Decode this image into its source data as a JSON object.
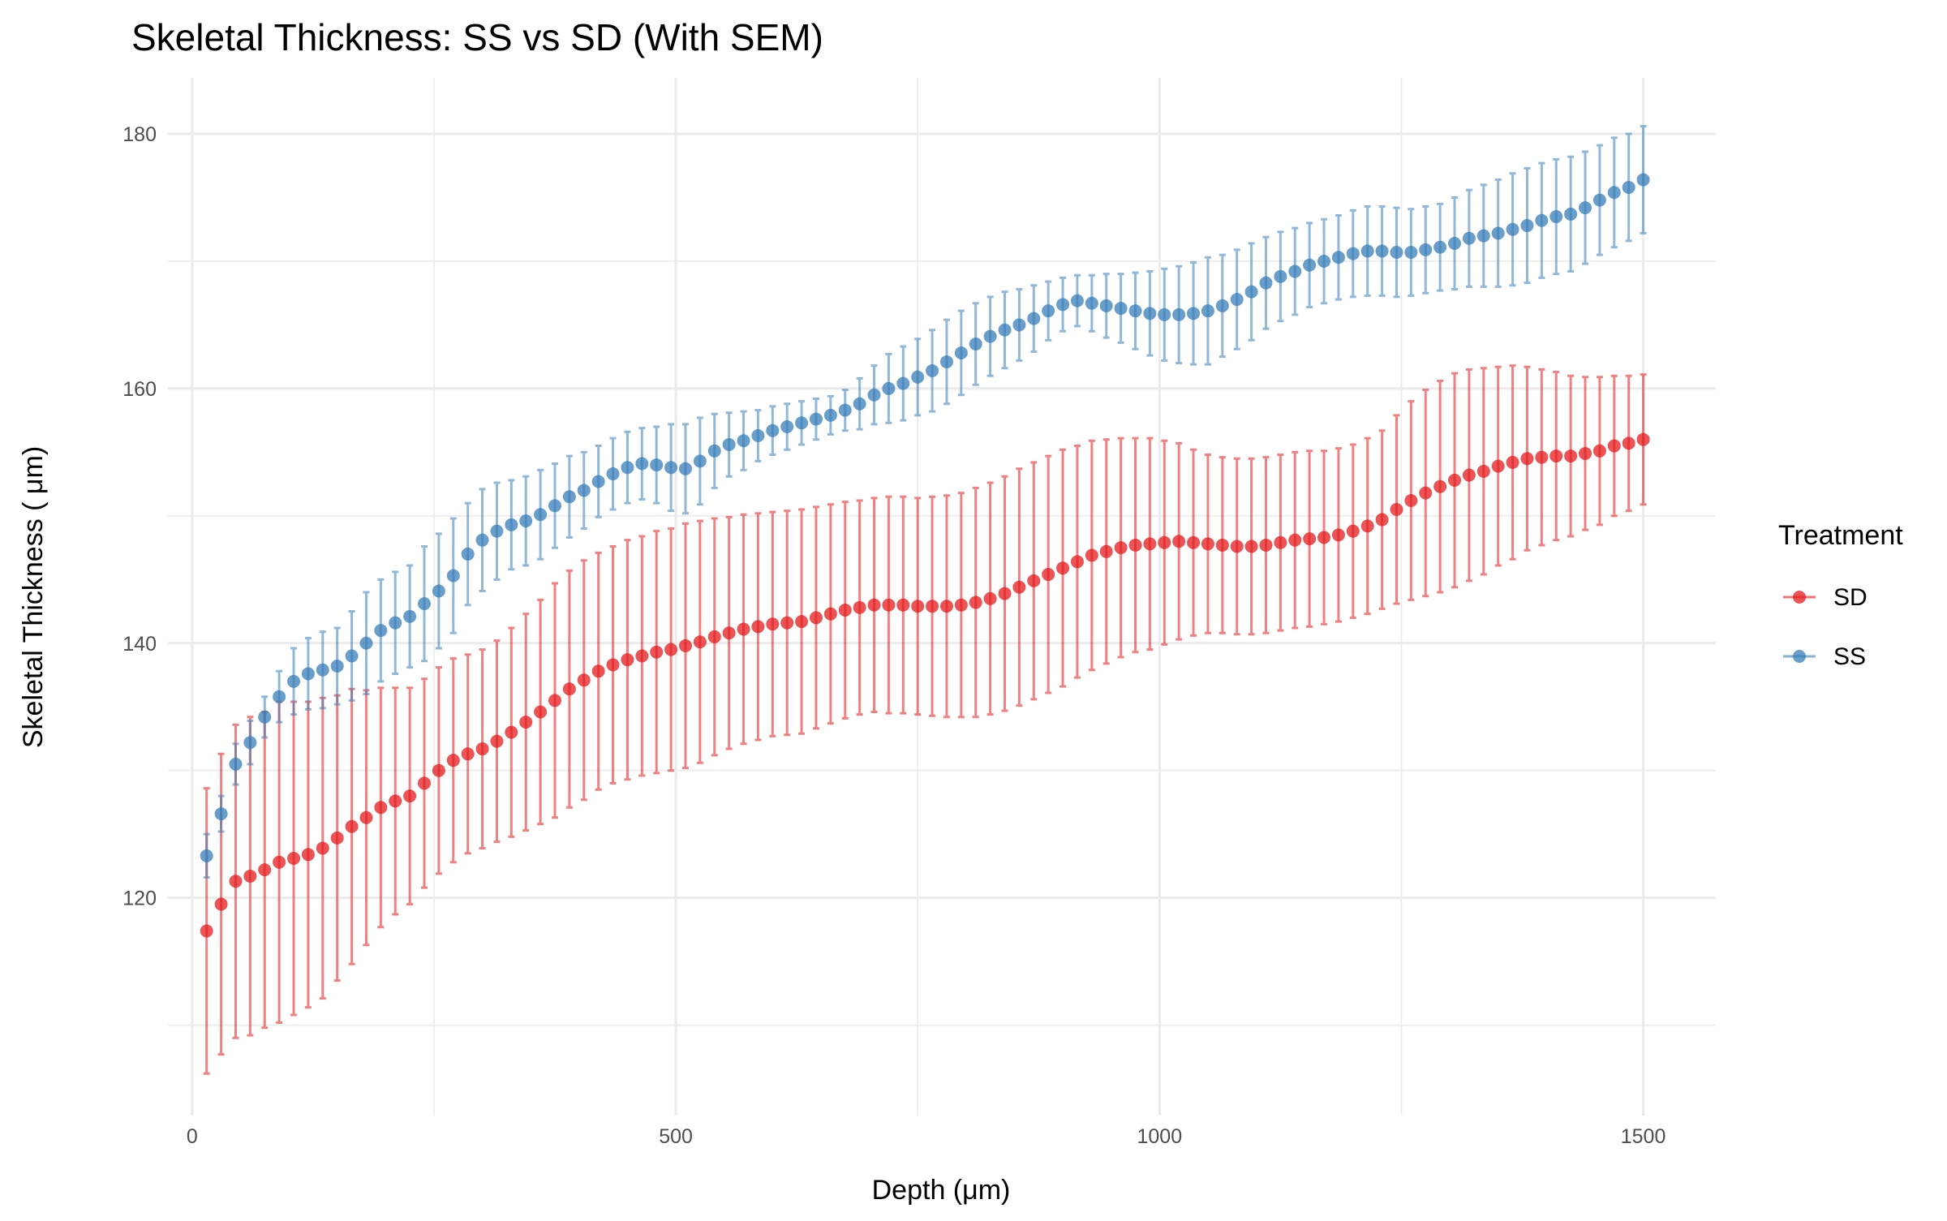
{
  "chart_data": {
    "type": "scatter",
    "title": "Skeletal Thickness: SS vs SD (With SEM)",
    "x_label": "Depth (μm)",
    "y_label": "Skeletal Thickness ( μm)",
    "legend_title": "Treatment",
    "legend": "right",
    "grid": true,
    "x": [
      15,
      30,
      45,
      60,
      75,
      90,
      105,
      120,
      135,
      150,
      165,
      180,
      195,
      210,
      225,
      240,
      255,
      270,
      285,
      300,
      315,
      330,
      345,
      360,
      375,
      390,
      405,
      420,
      435,
      450,
      465,
      480,
      495,
      510,
      525,
      540,
      555,
      570,
      585,
      600,
      615,
      630,
      645,
      660,
      675,
      690,
      705,
      720,
      735,
      750,
      765,
      780,
      795,
      810,
      825,
      840,
      855,
      870,
      885,
      900,
      915,
      930,
      945,
      960,
      975,
      990,
      1005,
      1020,
      1035,
      1050,
      1065,
      1080,
      1095,
      1110,
      1125,
      1140,
      1155,
      1170,
      1185,
      1200,
      1215,
      1230,
      1245,
      1260,
      1275,
      1290,
      1305,
      1320,
      1335,
      1350,
      1365,
      1380,
      1395,
      1410,
      1425,
      1440,
      1455,
      1470,
      1485,
      1500
    ],
    "series": [
      {
        "name": "SD",
        "color": "#e41a1c",
        "values": [
          117.4,
          119.5,
          121.3,
          121.7,
          122.2,
          122.8,
          123.1,
          123.4,
          123.9,
          124.7,
          125.6,
          126.3,
          127.1,
          127.6,
          128.0,
          129.0,
          130.0,
          130.8,
          131.3,
          131.7,
          132.3,
          133.0,
          133.8,
          134.6,
          135.5,
          136.4,
          137.1,
          137.8,
          138.3,
          138.7,
          139.0,
          139.3,
          139.5,
          139.8,
          140.1,
          140.5,
          140.8,
          141.1,
          141.3,
          141.5,
          141.6,
          141.7,
          142.0,
          142.3,
          142.6,
          142.8,
          143.0,
          143.0,
          143.0,
          142.9,
          142.9,
          142.9,
          143.0,
          143.2,
          143.5,
          143.9,
          144.4,
          144.9,
          145.4,
          145.9,
          146.4,
          146.9,
          147.2,
          147.5,
          147.7,
          147.8,
          147.9,
          148.0,
          147.9,
          147.8,
          147.7,
          147.6,
          147.6,
          147.7,
          147.9,
          148.1,
          148.2,
          148.3,
          148.5,
          148.8,
          149.2,
          149.7,
          150.5,
          151.2,
          151.8,
          152.3,
          152.8,
          153.2,
          153.5,
          153.9,
          154.2,
          154.5,
          154.6,
          154.7,
          154.7,
          154.9,
          155.1,
          155.5,
          155.7,
          156.0
        ],
        "errors": [
          11.2,
          11.8,
          12.3,
          12.5,
          12.4,
          12.6,
          12.3,
          12,
          11.8,
          11.2,
          10.8,
          10,
          9.4,
          8.9,
          8.5,
          8.2,
          8.1,
          8,
          7.8,
          7.8,
          7.9,
          8.2,
          8.5,
          8.8,
          9.2,
          9.3,
          9.4,
          9.3,
          9.3,
          9.4,
          9.4,
          9.5,
          9.5,
          9.6,
          9.5,
          9.3,
          9.1,
          9,
          8.9,
          8.8,
          8.8,
          8.8,
          8.7,
          8.6,
          8.5,
          8.4,
          8.4,
          8.5,
          8.5,
          8.5,
          8.6,
          8.7,
          8.8,
          9,
          9.1,
          9.2,
          9.3,
          9.3,
          9.3,
          9.3,
          9.1,
          9,
          8.8,
          8.6,
          8.4,
          8.3,
          8,
          7.7,
          7.3,
          7.0,
          6.9,
          6.9,
          6.9,
          6.9,
          6.9,
          6.9,
          6.9,
          6.8,
          6.8,
          6.8,
          6.9,
          7,
          7.4,
          7.8,
          8.1,
          8.3,
          8.4,
          8.3,
          8.1,
          7.8,
          7.6,
          7.2,
          6.9,
          6.6,
          6.3,
          6,
          5.8,
          5.5,
          5.3,
          5.1
        ]
      },
      {
        "name": "SS",
        "color": "#377eb8",
        "values": [
          123.3,
          126.6,
          130.5,
          132.2,
          134.2,
          135.8,
          137.0,
          137.6,
          137.9,
          138.2,
          139.0,
          140.0,
          141.0,
          141.6,
          142.1,
          143.1,
          144.1,
          145.3,
          147.0,
          148.1,
          148.8,
          149.3,
          149.6,
          150.1,
          150.8,
          151.5,
          152.0,
          152.7,
          153.3,
          153.8,
          154.1,
          154.0,
          153.8,
          153.7,
          154.3,
          155.1,
          155.6,
          155.9,
          156.3,
          156.7,
          157.0,
          157.3,
          157.6,
          157.9,
          158.3,
          158.8,
          159.5,
          160.0,
          160.4,
          160.9,
          161.4,
          162.1,
          162.8,
          163.5,
          164.1,
          164.6,
          165.0,
          165.5,
          166.1,
          166.6,
          166.9,
          166.7,
          166.5,
          166.3,
          166.1,
          165.9,
          165.8,
          165.8,
          165.9,
          166.1,
          166.5,
          167.0,
          167.6,
          168.3,
          168.8,
          169.2,
          169.7,
          170.0,
          170.3,
          170.6,
          170.8,
          170.8,
          170.7,
          170.7,
          170.9,
          171.1,
          171.4,
          171.8,
          172.0,
          172.2,
          172.5,
          172.8,
          173.2,
          173.5,
          173.7,
          174.2,
          174.8,
          175.4,
          175.8,
          176.4
        ],
        "errors": [
          1.7,
          1.4,
          1.6,
          1.7,
          1.6,
          2,
          2.6,
          2.8,
          3,
          3,
          3.5,
          4,
          4,
          4,
          4,
          4.5,
          4.5,
          4.5,
          4,
          4,
          3.8,
          3.5,
          3.5,
          3.5,
          3.3,
          3.2,
          3,
          2.8,
          2.8,
          2.8,
          2.8,
          3,
          3.4,
          3.5,
          3.4,
          2.9,
          2.5,
          2.3,
          2,
          1.9,
          1.8,
          1.7,
          1.6,
          1.5,
          1.6,
          2,
          2.3,
          2.7,
          2.9,
          3,
          3.2,
          3.3,
          3.3,
          3.2,
          3.1,
          3,
          2.8,
          2.6,
          2.3,
          2.1,
          2,
          2.2,
          2.5,
          2.7,
          3,
          3.3,
          3.6,
          3.8,
          4,
          4.2,
          4,
          3.9,
          3.8,
          3.6,
          3.5,
          3.4,
          3.3,
          3.3,
          3.3,
          3.4,
          3.5,
          3.5,
          3.5,
          3.4,
          3.4,
          3.4,
          3.6,
          3.8,
          4,
          4.2,
          4.4,
          4.5,
          4.5,
          4.5,
          4.5,
          4.4,
          4.3,
          4.3,
          4.2,
          4.2
        ]
      }
    ],
    "xlim": [
      -25,
      1575
    ],
    "ylim": [
      102.9,
      184.4
    ],
    "xticks": [
      0,
      500,
      1000,
      1500
    ],
    "yticks": [
      120,
      140,
      160,
      180
    ]
  }
}
